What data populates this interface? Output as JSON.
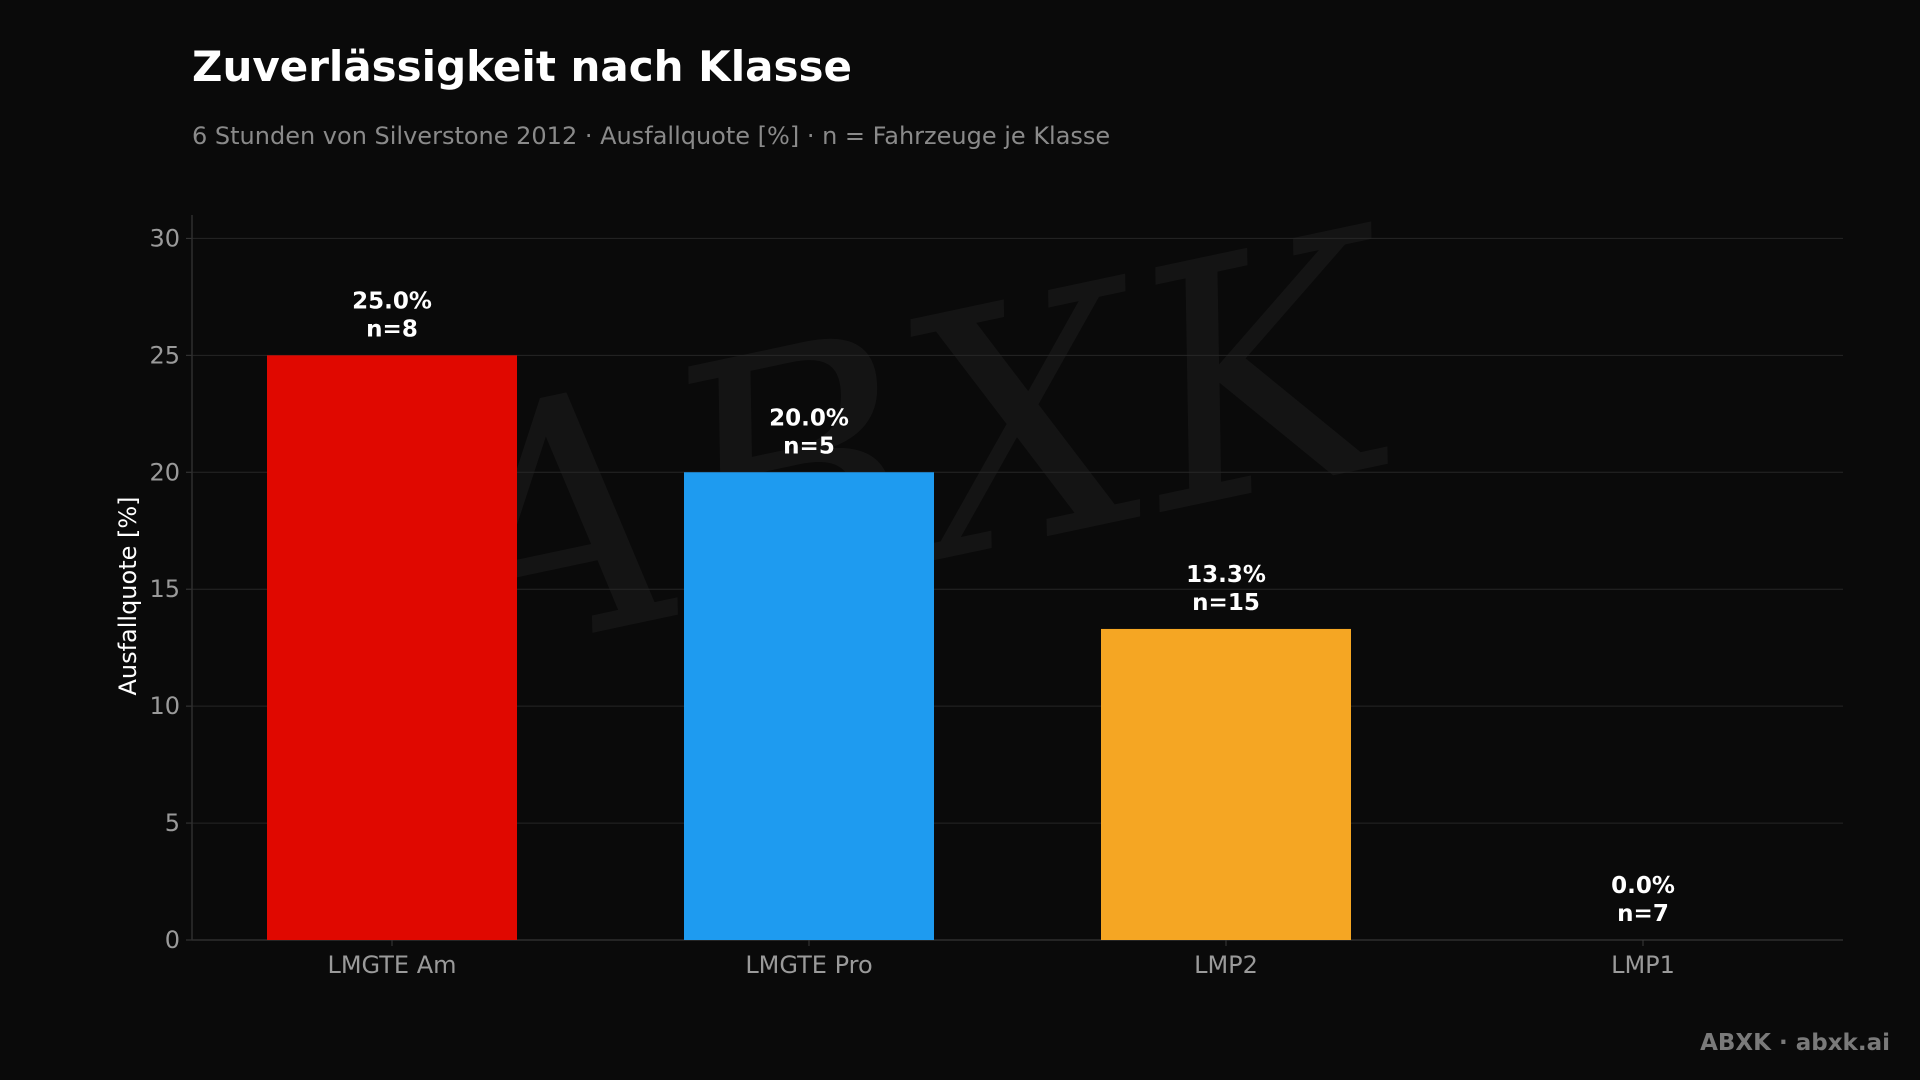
{
  "header": {
    "title": "Zuverlässigkeit nach Klasse",
    "subtitle": "6 Stunden von Silverstone 2012 · Ausfallquote [%] · n = Fahrzeuge je Klasse"
  },
  "footer": {
    "brand": "ABXK · abxk.ai"
  },
  "watermark": {
    "logo_text": "ABXK"
  },
  "chart_data": {
    "type": "bar",
    "title": "Zuverlässigkeit nach Klasse",
    "subtitle": "6 Stunden von Silverstone 2012 · Ausfallquote [%] · n = Fahrzeuge je Klasse",
    "xlabel": "",
    "ylabel": "Ausfallquote [%]",
    "ylim": [
      0,
      31
    ],
    "yticks": [
      0,
      5,
      10,
      15,
      20,
      25,
      30
    ],
    "grid": true,
    "categories": [
      "LMGTE Am",
      "LMGTE Pro",
      "LMP2",
      "LMP1"
    ],
    "values": [
      25.0,
      20.0,
      13.3,
      0.0
    ],
    "counts": [
      8,
      5,
      15,
      7
    ],
    "value_labels": [
      "25.0%",
      "20.0%",
      "13.3%",
      "0.0%"
    ],
    "count_labels": [
      "n=8",
      "n=5",
      "n=15",
      "n=7"
    ],
    "colors": [
      "#e00800",
      "#1e9bf0",
      "#f5a623",
      "#4caf50"
    ]
  }
}
